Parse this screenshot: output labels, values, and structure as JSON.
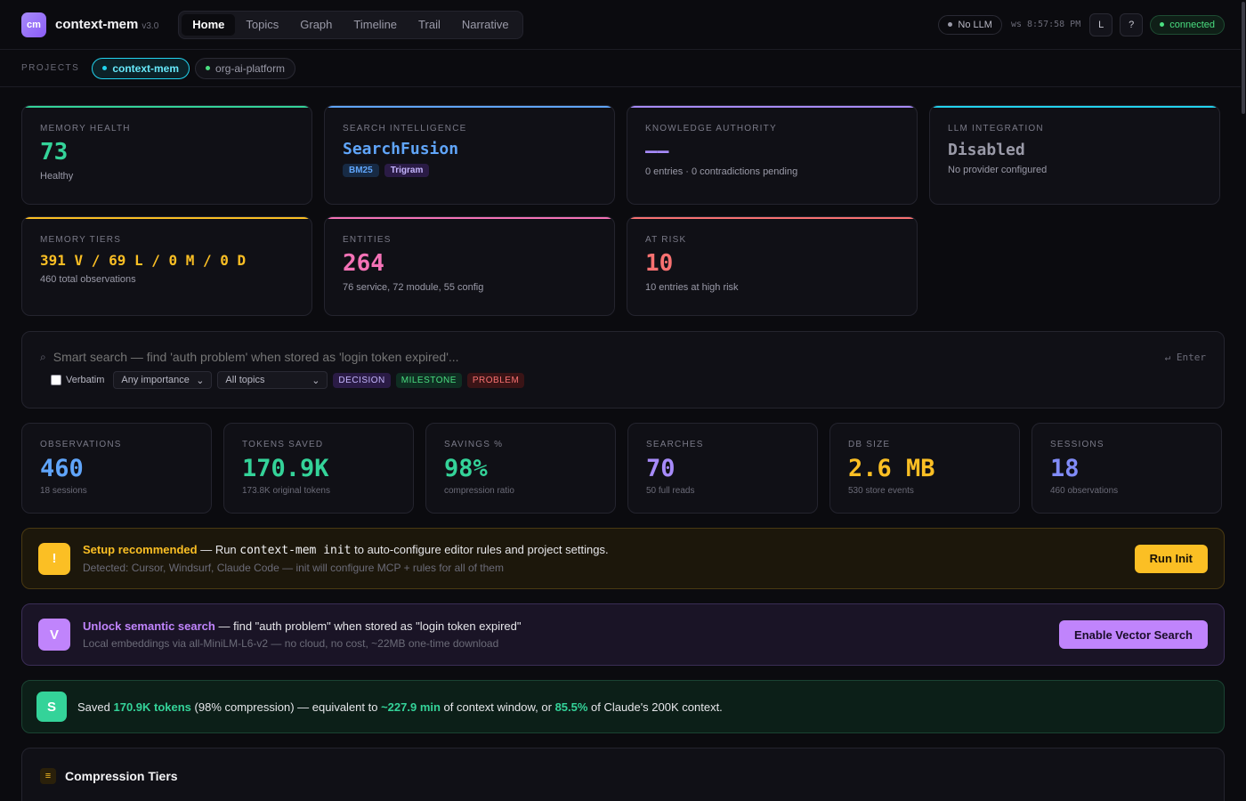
{
  "app": {
    "logo": "cm",
    "name": "context-mem",
    "version": "v3.0"
  },
  "nav": {
    "tabs": [
      "Home",
      "Topics",
      "Graph",
      "Timeline",
      "Trail",
      "Narrative"
    ],
    "active": 0
  },
  "status": {
    "llm": "No LLM",
    "ws": "ws 8:57:58 PM",
    "layout_btn": "L",
    "help_btn": "?",
    "connection": "connected"
  },
  "projects": {
    "label": "PROJECTS",
    "items": [
      "context-mem",
      "org-ai-platform"
    ]
  },
  "health_cards": [
    {
      "label": "MEMORY HEALTH",
      "value": "73",
      "sub": "Healthy",
      "accent": "#34d399"
    },
    {
      "label": "SEARCH INTELLIGENCE",
      "value": "SearchFusion",
      "tags": [
        "BM25",
        "Trigram"
      ],
      "accent": "#60a5fa"
    },
    {
      "label": "KNOWLEDGE AUTHORITY",
      "value": "——",
      "sub": "0 entries · 0 contradictions pending",
      "accent": "#a78bfa"
    },
    {
      "label": "LLM INTEGRATION",
      "value": "Disabled",
      "sub": "No provider configured",
      "accent": "#22d3ee"
    },
    {
      "label": "MEMORY TIERS",
      "value": "391 V / 69 L / 0 M / 0 D",
      "sub": "460 total observations",
      "accent": "#fbbf24"
    },
    {
      "label": "ENTITIES",
      "value": "264",
      "sub": "76 service, 72 module, 55 config",
      "accent": "#f472b6"
    },
    {
      "label": "AT RISK",
      "value": "10",
      "sub": "10 entries at high risk",
      "accent": "#f87171"
    }
  ],
  "search": {
    "placeholder": "Smart search — find 'auth problem' when stored as 'login token expired'...",
    "enter_hint": "↵ Enter",
    "verbatim_label": "Verbatim",
    "importance": "Any importance",
    "topics": "All topics",
    "type_tags": [
      "DECISION",
      "MILESTONE",
      "PROBLEM"
    ]
  },
  "stats": [
    {
      "label": "OBSERVATIONS",
      "value": "460",
      "sub": "18 sessions",
      "color": "#60a5fa"
    },
    {
      "label": "TOKENS SAVED",
      "value": "170.9K",
      "sub": "173.8K original tokens",
      "color": "#34d399"
    },
    {
      "label": "SAVINGS %",
      "value": "98%",
      "sub": "compression ratio",
      "color": "#34d399"
    },
    {
      "label": "SEARCHES",
      "value": "70",
      "sub": "50 full reads",
      "color": "#a78bfa"
    },
    {
      "label": "DB SIZE",
      "value": "2.6 MB",
      "sub": "530 store events",
      "color": "#fbbf24"
    },
    {
      "label": "SESSIONS",
      "value": "18",
      "sub": "460 observations",
      "color": "#818cf8"
    }
  ],
  "setup_banner": {
    "icon": "!",
    "title": "Setup recommended",
    "text_pre": " — Run ",
    "cmd": "context-mem init",
    "text_post": " to auto-configure editor rules and project settings.",
    "detail": "Detected: Cursor, Windsurf, Claude Code — init will configure MCP + rules for all of them",
    "button": "Run Init"
  },
  "vector_banner": {
    "icon": "V",
    "title": "Unlock semantic search",
    "text": " — find \"auth problem\" when stored as \"login token expired\"",
    "detail": "Local embeddings via all-MiniLM-L6-v2 — no cloud, no cost, ~22MB one-time download",
    "button": "Enable Vector Search"
  },
  "savings_banner": {
    "icon": "S",
    "p1": "Saved ",
    "tokens": "170.9K tokens",
    "p2": " (98% compression) — equivalent to ",
    "minutes": "~227.9 min",
    "p3": " of context window, or ",
    "pct": "85.5%",
    "p4": " of Claude's 200K context."
  },
  "compression": {
    "icon": "≡",
    "title": "Compression Tiers"
  }
}
